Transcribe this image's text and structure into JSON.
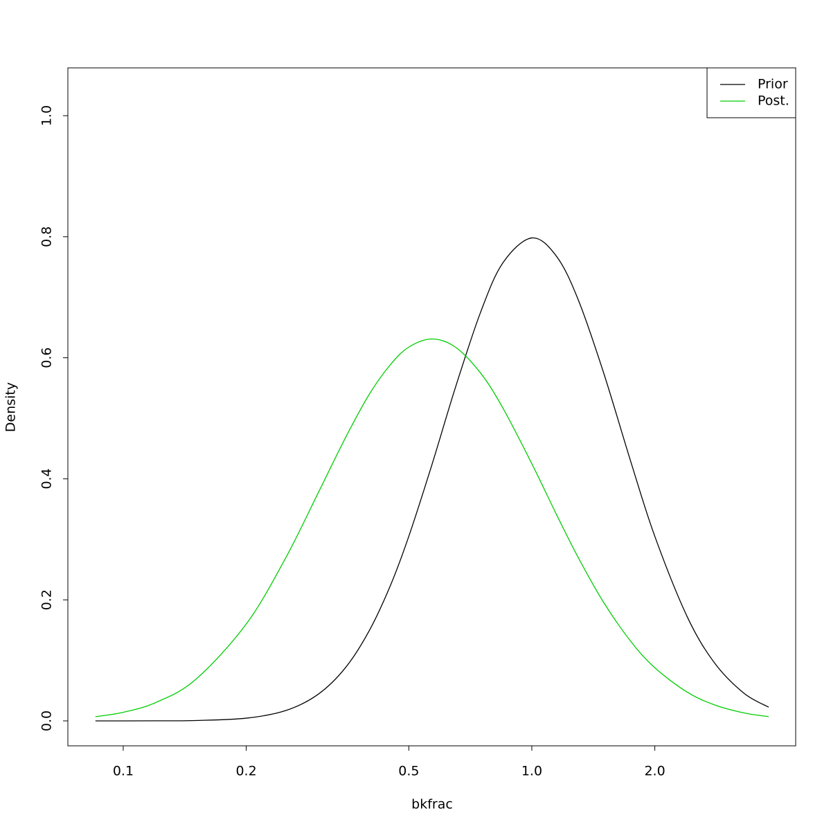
{
  "chart_data": {
    "type": "line",
    "xlabel": "bkfrac",
    "ylabel": "Density",
    "xlog": true,
    "x": [
      0.0855,
      0.1,
      0.12,
      0.15,
      0.2,
      0.25,
      0.3,
      0.35,
      0.4,
      0.45,
      0.5,
      0.57,
      0.65,
      0.75,
      0.85,
      1.0,
      1.15,
      1.3,
      1.5,
      1.75,
      2.0,
      2.4,
      2.8,
      3.3,
      3.8
    ],
    "series": [
      {
        "name": "Prior",
        "color": "#000000",
        "values": [
          0,
          0,
          0.0001,
          0.0006,
          0.0045,
          0.0171,
          0.044,
          0.088,
          0.149,
          0.2225,
          0.305,
          0.424,
          0.5506,
          0.676,
          0.757,
          0.798,
          0.7674,
          0.6953,
          0.5744,
          0.4266,
          0.305,
          0.1723,
          0.0958,
          0.0461,
          0.0226
        ]
      },
      {
        "name": "Post.",
        "color": "#00cd00",
        "values": [
          0.007,
          0.0142,
          0.0302,
          0.0678,
          0.16,
          0.2697,
          0.3767,
          0.468,
          0.5395,
          0.588,
          0.6176,
          0.631,
          0.6176,
          0.5743,
          0.5167,
          0.425,
          0.3406,
          0.2695,
          0.1955,
          0.1307,
          0.0878,
          0.0475,
          0.0265,
          0.0133,
          0.007
        ]
      }
    ],
    "xlim": [
      0.0732,
      4.424
    ],
    "ylim": [
      -0.0412,
      1.079
    ],
    "xticks": [
      0.1,
      0.2,
      0.5,
      {
        "value": 1,
        "label": "1.0"
      },
      {
        "value": 2,
        "label": "2.0"
      }
    ],
    "yticks": [
      {
        "value": 0,
        "label": "0.0"
      },
      0.2,
      0.4,
      0.6,
      0.8,
      {
        "value": 1,
        "label": "1.0"
      }
    ],
    "legend": "top-right"
  }
}
